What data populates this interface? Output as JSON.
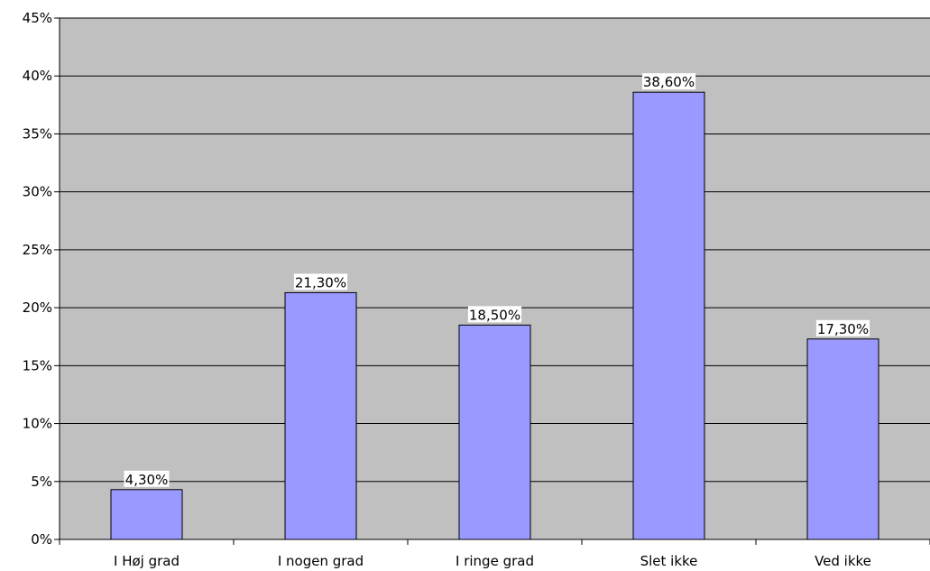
{
  "chart_data": {
    "type": "bar",
    "title": "",
    "xlabel": "",
    "ylabel": "",
    "categories": [
      "I Høj grad",
      "I nogen grad",
      "I ringe grad",
      "Slet ikke",
      "Ved ikke"
    ],
    "values": [
      4.3,
      21.3,
      18.5,
      38.6,
      17.3
    ],
    "data_labels": [
      "4,30%",
      "21,30%",
      "18,50%",
      "38,60%",
      "17,30%"
    ],
    "y_ticks": [
      0,
      5,
      10,
      15,
      20,
      25,
      30,
      35,
      40,
      45
    ],
    "y_tick_labels": [
      "0%",
      "5%",
      "10%",
      "15%",
      "20%",
      "25%",
      "30%",
      "35%",
      "40%",
      "45%"
    ],
    "ylim": [
      0,
      45
    ],
    "grid": true,
    "legend": "none",
    "colors": {
      "plot_background": "#c0c0c0",
      "bar_fill": "#9999ff",
      "bar_stroke": "#000000",
      "gridline": "#000000"
    }
  }
}
